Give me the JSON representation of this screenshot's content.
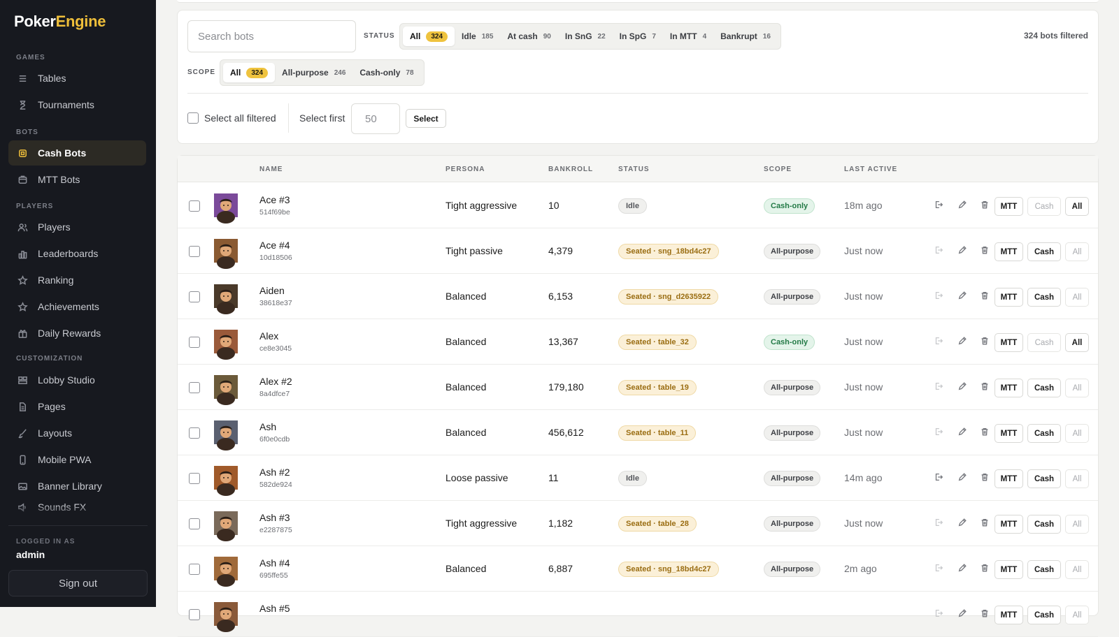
{
  "brand": {
    "part1": "Poker",
    "part2": "Engine"
  },
  "sidebar": {
    "sections": [
      {
        "title": "GAMES",
        "items": [
          {
            "label": "Tables",
            "icon": "list-icon"
          },
          {
            "label": "Tournaments",
            "icon": "hourglass-icon"
          }
        ]
      },
      {
        "title": "BOTS",
        "items": [
          {
            "label": "Cash Bots",
            "icon": "chip-icon",
            "active": true
          },
          {
            "label": "MTT Bots",
            "icon": "box-icon"
          }
        ]
      },
      {
        "title": "PLAYERS",
        "items": [
          {
            "label": "Players",
            "icon": "users-icon"
          },
          {
            "label": "Leaderboards",
            "icon": "bar-chart-icon"
          },
          {
            "label": "Ranking",
            "icon": "star-icon"
          },
          {
            "label": "Achievements",
            "icon": "star-outline-icon"
          },
          {
            "label": "Daily Rewards",
            "icon": "gift-icon"
          }
        ]
      },
      {
        "title": "CUSTOMIZATION",
        "items": [
          {
            "label": "Lobby Studio",
            "icon": "layout-icon"
          },
          {
            "label": "Pages",
            "icon": "file-icon"
          },
          {
            "label": "Layouts",
            "icon": "brush-icon"
          },
          {
            "label": "Mobile PWA",
            "icon": "phone-icon"
          },
          {
            "label": "Banner Library",
            "icon": "image-icon"
          },
          {
            "label": "Sounds FX",
            "icon": "sound-icon"
          }
        ]
      }
    ],
    "logged_in_label": "LOGGED IN AS",
    "logged_in_user": "admin",
    "sign_out": "Sign out"
  },
  "filters": {
    "search_placeholder": "Search bots",
    "status_label": "STATUS",
    "status_options": [
      {
        "label": "All",
        "count": "324",
        "active": true
      },
      {
        "label": "Idle",
        "count": "185"
      },
      {
        "label": "At cash",
        "count": "90"
      },
      {
        "label": "In SnG",
        "count": "22"
      },
      {
        "label": "In SpG",
        "count": "7"
      },
      {
        "label": "In MTT",
        "count": "4"
      },
      {
        "label": "Bankrupt",
        "count": "16"
      }
    ],
    "scope_label": "SCOPE",
    "scope_options": [
      {
        "label": "All",
        "count": "324",
        "active": true
      },
      {
        "label": "All-purpose",
        "count": "246"
      },
      {
        "label": "Cash-only",
        "count": "78"
      }
    ],
    "filtered_text": "324 bots filtered",
    "select_all_label": "Select all filtered",
    "select_first_label": "Select first",
    "select_first_value": "50",
    "select_button": "Select"
  },
  "table": {
    "headers": {
      "name": "NAME",
      "persona": "PERSONA",
      "bankroll": "BANKROLL",
      "status": "STATUS",
      "scope": "SCOPE",
      "last_active": "LAST ACTIVE"
    },
    "button_labels": {
      "mtt": "MTT",
      "cash": "Cash",
      "all": "All"
    },
    "rows": [
      {
        "name": "Ace #3",
        "id": "514f69be",
        "persona": "Tight aggressive",
        "bankroll": "10",
        "status": "Idle",
        "status_type": "idle",
        "scope": "Cash-only",
        "scope_type": "cash",
        "last_active": "18m ago",
        "cash_btn_active": false,
        "all_btn_active": true,
        "leave_active": true,
        "avatar_color": "#7b4a9a"
      },
      {
        "name": "Ace #4",
        "id": "10d18506",
        "persona": "Tight passive",
        "bankroll": "4,379",
        "status": "Seated · sng_18bd4c27",
        "status_type": "seated",
        "scope": "All-purpose",
        "scope_type": "all",
        "last_active": "Just now",
        "cash_btn_active": true,
        "all_btn_active": false,
        "leave_active": false,
        "avatar_color": "#8a5a32"
      },
      {
        "name": "Aiden",
        "id": "38618e37",
        "persona": "Balanced",
        "bankroll": "6,153",
        "status": "Seated · sng_d2635922",
        "status_type": "seated",
        "scope": "All-purpose",
        "scope_type": "all",
        "last_active": "Just now",
        "cash_btn_active": true,
        "all_btn_active": false,
        "leave_active": false,
        "avatar_color": "#4a3a2a"
      },
      {
        "name": "Alex",
        "id": "ce8e3045",
        "persona": "Balanced",
        "bankroll": "13,367",
        "status": "Seated · table_32",
        "status_type": "seated",
        "scope": "Cash-only",
        "scope_type": "cash",
        "last_active": "Just now",
        "cash_btn_active": false,
        "all_btn_active": true,
        "leave_active": false,
        "avatar_color": "#9a5a3a"
      },
      {
        "name": "Alex #2",
        "id": "8a4dfce7",
        "persona": "Balanced",
        "bankroll": "179,180",
        "status": "Seated · table_19",
        "status_type": "seated",
        "scope": "All-purpose",
        "scope_type": "all",
        "last_active": "Just now",
        "cash_btn_active": true,
        "all_btn_active": false,
        "leave_active": false,
        "avatar_color": "#6b5a3a"
      },
      {
        "name": "Ash",
        "id": "6f0e0cdb",
        "persona": "Balanced",
        "bankroll": "456,612",
        "status": "Seated · table_11",
        "status_type": "seated",
        "scope": "All-purpose",
        "scope_type": "all",
        "last_active": "Just now",
        "cash_btn_active": true,
        "all_btn_active": false,
        "leave_active": false,
        "avatar_color": "#5a6070"
      },
      {
        "name": "Ash #2",
        "id": "582de924",
        "persona": "Loose passive",
        "bankroll": "11",
        "status": "Idle",
        "status_type": "idle",
        "scope": "All-purpose",
        "scope_type": "all",
        "last_active": "14m ago",
        "cash_btn_active": true,
        "all_btn_active": false,
        "leave_active": true,
        "avatar_color": "#a05a2a"
      },
      {
        "name": "Ash #3",
        "id": "e2287875",
        "persona": "Tight aggressive",
        "bankroll": "1,182",
        "status": "Seated · table_28",
        "status_type": "seated",
        "scope": "All-purpose",
        "scope_type": "all",
        "last_active": "Just now",
        "cash_btn_active": true,
        "all_btn_active": false,
        "leave_active": false,
        "avatar_color": "#7a6a5a"
      },
      {
        "name": "Ash #4",
        "id": "695ffe55",
        "persona": "Balanced",
        "bankroll": "6,887",
        "status": "Seated · sng_18bd4c27",
        "status_type": "seated",
        "scope": "All-purpose",
        "scope_type": "all",
        "last_active": "2m ago",
        "cash_btn_active": true,
        "all_btn_active": false,
        "leave_active": false,
        "avatar_color": "#a06a3a"
      },
      {
        "name": "Ash #5",
        "id": "",
        "persona": "",
        "bankroll": "",
        "status": "",
        "status_type": "idle",
        "scope": "",
        "scope_type": "all",
        "last_active": "",
        "cash_btn_active": true,
        "all_btn_active": false,
        "leave_active": false,
        "avatar_color": "#8a5a3a"
      }
    ]
  }
}
